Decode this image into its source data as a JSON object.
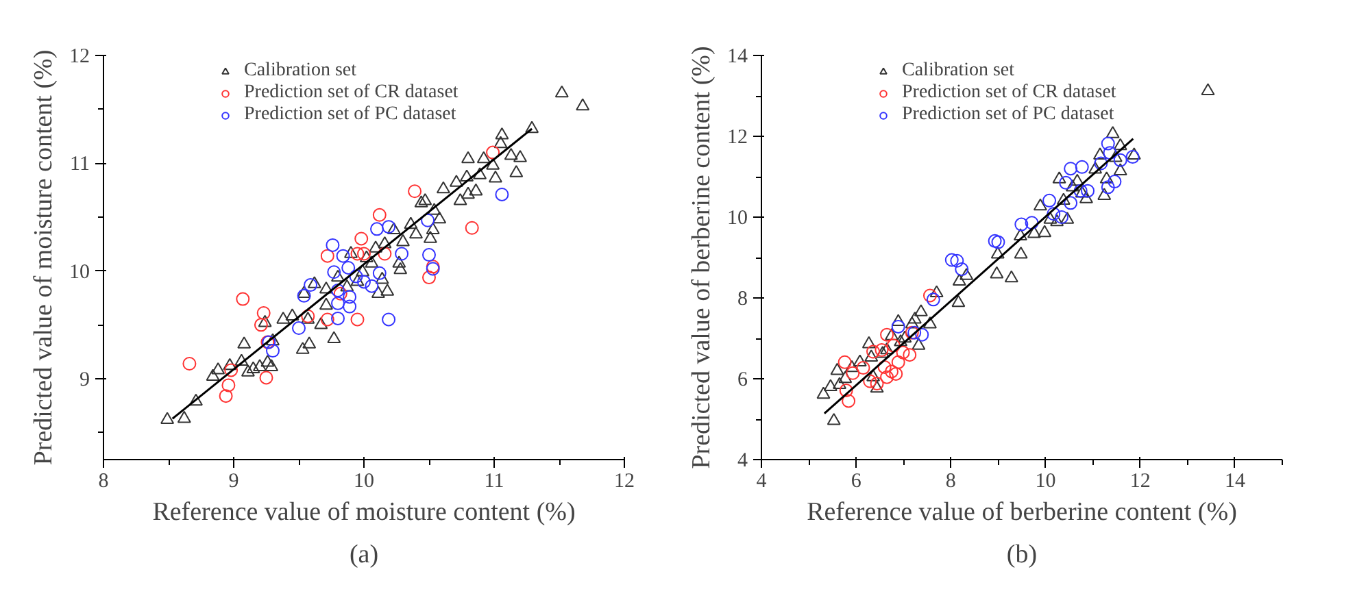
{
  "chart_data": [
    {
      "type": "scatter",
      "xlabel": "Reference value of moisture content (%)",
      "ylabel": "Predicted value of moisture content (%)",
      "xlim": [
        8,
        12
      ],
      "ylim": [
        8.25,
        12
      ],
      "xticks": [
        8,
        9,
        10,
        11,
        12
      ],
      "yticks": [
        9,
        10,
        11,
        12
      ],
      "grid": false,
      "legend": "top right",
      "annotations": [
        "(a)"
      ],
      "series": [
        {
          "name": "Calibration set",
          "color": "#333333",
          "marker": "triangle",
          "x": [
            8.49,
            8.62,
            8.71,
            8.84,
            8.88,
            8.97,
            9.06,
            9.08,
            9.11,
            9.15,
            9.2,
            9.24,
            9.26,
            9.29,
            9.3,
            9.38,
            9.45,
            9.53,
            9.58,
            9.57,
            9.54,
            9.62,
            9.67,
            9.71,
            9.77,
            9.71,
            9.8,
            9.87,
            9.9,
            9.95,
            9.99,
            10.02,
            10.06,
            10.09,
            10.11,
            10.14,
            10.18,
            10.16,
            10.23,
            10.27,
            10.28,
            10.3,
            10.36,
            10.4,
            10.44,
            10.47,
            10.51,
            10.53,
            10.54,
            10.58,
            10.61,
            10.71,
            10.74,
            10.79,
            10.8,
            10.8,
            10.86,
            10.89,
            10.92,
            10.99,
            11.01,
            11.05,
            11.06,
            11.13,
            11.17,
            11.2,
            11.29,
            11.52,
            11.68
          ],
          "values": [
            8.62,
            8.63,
            8.79,
            9.02,
            9.08,
            9.12,
            9.16,
            9.32,
            9.06,
            9.09,
            9.11,
            9.52,
            9.15,
            9.11,
            9.35,
            9.55,
            9.58,
            9.27,
            9.32,
            9.55,
            9.79,
            9.88,
            9.5,
            9.68,
            9.37,
            9.83,
            9.94,
            9.85,
            10.16,
            9.9,
            9.99,
            10.12,
            10.07,
            10.21,
            9.79,
            9.92,
            9.81,
            10.25,
            10.38,
            10.07,
            10.01,
            10.27,
            10.43,
            10.34,
            10.63,
            10.65,
            10.3,
            10.38,
            10.56,
            10.48,
            10.76,
            10.82,
            10.65,
            10.87,
            11.04,
            10.71,
            10.74,
            10.89,
            11.04,
            10.98,
            10.86,
            11.18,
            11.26,
            11.07,
            10.91,
            11.05,
            11.32,
            11.65,
            11.53
          ]
        },
        {
          "name": "Prediction set of CR dataset",
          "color": "#ff3333",
          "marker": "circle",
          "x": [
            8.66,
            8.94,
            8.96,
            8.98,
            9.07,
            9.21,
            9.23,
            9.25,
            9.26,
            9.57,
            9.72,
            9.72,
            9.82,
            9.95,
            9.95,
            9.98,
            10.0,
            10.12,
            10.16,
            10.39,
            10.5,
            10.53,
            10.83,
            10.99
          ],
          "values": [
            9.14,
            8.84,
            8.94,
            9.08,
            9.74,
            9.5,
            9.61,
            9.01,
            9.34,
            9.58,
            10.14,
            9.55,
            9.79,
            9.55,
            10.16,
            10.3,
            10.16,
            10.52,
            10.16,
            10.74,
            9.94,
            10.04,
            10.4,
            11.1
          ]
        },
        {
          "name": "Prediction set of PC dataset",
          "color": "#3333ff",
          "marker": "circle",
          "x": [
            9.27,
            9.3,
            9.5,
            9.54,
            9.59,
            9.76,
            9.77,
            9.8,
            9.8,
            9.8,
            9.84,
            9.88,
            9.89,
            9.89,
            9.94,
            10.0,
            10.06,
            10.1,
            10.12,
            10.19,
            10.19,
            10.29,
            10.49,
            10.5,
            10.53,
            11.06
          ],
          "values": [
            9.34,
            9.26,
            9.47,
            9.77,
            9.87,
            10.24,
            9.99,
            9.82,
            9.7,
            9.56,
            10.14,
            10.03,
            9.76,
            9.67,
            9.95,
            9.9,
            9.86,
            10.39,
            9.98,
            10.41,
            9.55,
            10.16,
            10.47,
            10.15,
            10.02,
            10.71
          ]
        },
        {
          "type": "line",
          "color": "#000000",
          "x": [
            8.53,
            11.29
          ],
          "values": [
            8.63,
            11.32
          ]
        }
      ]
    },
    {
      "type": "scatter",
      "xlabel": "Reference value of berberine content (%)",
      "ylabel": "Predicted value of berberine content (%)",
      "xlim": [
        4,
        15
      ],
      "ylim": [
        4,
        14
      ],
      "xticks": [
        4,
        6,
        8,
        10,
        12,
        14
      ],
      "yticks": [
        4,
        6,
        8,
        10,
        12,
        14
      ],
      "grid": false,
      "legend": "top right",
      "annotations": [
        "(b)"
      ],
      "series": [
        {
          "name": "Calibration set",
          "color": "#333333",
          "marker": "triangle",
          "x": [
            5.31,
            5.46,
            5.53,
            5.6,
            5.65,
            5.77,
            5.91,
            6.08,
            6.27,
            6.32,
            6.36,
            6.44,
            6.56,
            6.65,
            6.75,
            6.89,
            6.94,
            7.03,
            7.18,
            7.24,
            7.32,
            7.37,
            7.56,
            7.7,
            8.16,
            8.18,
            8.33,
            8.97,
            8.99,
            9.28,
            9.48,
            9.47,
            9.76,
            9.89,
            9.98,
            10.1,
            10.24,
            10.29,
            10.38,
            10.46,
            10.57,
            10.67,
            10.77,
            10.86,
            11.05,
            11.15,
            11.24,
            11.29,
            11.42,
            11.48,
            11.58,
            11.58,
            11.87,
            13.43
          ],
          "values": [
            5.61,
            5.8,
            4.96,
            6.2,
            5.85,
            6.0,
            6.27,
            6.41,
            6.86,
            6.53,
            6.04,
            5.76,
            6.62,
            6.71,
            7.06,
            7.41,
            6.91,
            7.0,
            7.35,
            7.47,
            6.82,
            7.65,
            7.35,
            8.12,
            7.88,
            8.41,
            8.55,
            8.59,
            9.08,
            8.49,
            9.08,
            9.53,
            9.59,
            10.27,
            9.61,
            9.94,
            9.88,
            10.94,
            10.41,
            9.94,
            10.74,
            10.88,
            10.59,
            10.45,
            11.18,
            11.53,
            10.53,
            10.94,
            12.06,
            11.47,
            11.14,
            11.76,
            11.53,
            13.12
          ]
        },
        {
          "name": "Prediction set of CR dataset",
          "color": "#ff3333",
          "marker": "circle",
          "x": [
            5.76,
            5.79,
            5.84,
            5.93,
            6.15,
            6.29,
            6.36,
            6.44,
            6.54,
            6.6,
            6.65,
            6.65,
            6.75,
            6.79,
            6.84,
            6.89,
            6.99,
            7.13,
            7.18,
            7.56
          ],
          "values": [
            6.41,
            5.71,
            5.45,
            6.14,
            6.27,
            5.94,
            6.67,
            5.88,
            6.71,
            6.29,
            6.04,
            7.09,
            6.18,
            6.82,
            6.12,
            6.41,
            6.65,
            6.59,
            7.14,
            8.06
          ]
        },
        {
          "name": "Prediction set of PC dataset",
          "color": "#3333ff",
          "marker": "circle",
          "x": [
            6.89,
            7.23,
            7.39,
            7.63,
            8.02,
            8.13,
            8.23,
            8.93,
            9.0,
            9.49,
            9.71,
            10.08,
            10.17,
            10.34,
            10.43,
            10.53,
            10.53,
            10.74,
            10.77,
            10.89,
            11.17,
            11.32,
            11.32,
            11.36,
            11.46,
            11.58,
            11.84
          ],
          "values": [
            7.29,
            7.14,
            7.09,
            7.96,
            8.94,
            8.92,
            8.71,
            9.41,
            9.38,
            9.82,
            9.86,
            10.41,
            10.08,
            10.0,
            10.85,
            11.2,
            10.35,
            10.65,
            11.24,
            10.65,
            11.33,
            11.82,
            10.74,
            11.59,
            10.88,
            11.41,
            11.49
          ]
        },
        {
          "type": "line",
          "color": "#000000",
          "x": [
            5.33,
            11.85
          ],
          "values": [
            5.14,
            11.94
          ]
        }
      ]
    }
  ]
}
